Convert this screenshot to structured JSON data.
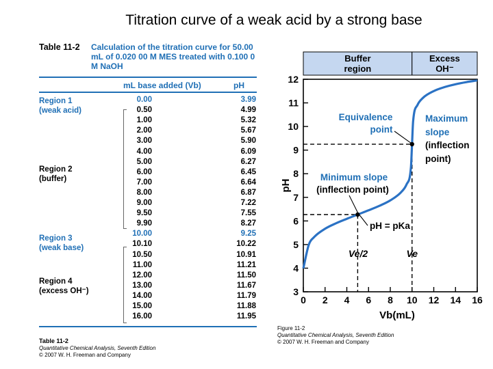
{
  "slide_title": "Titration curve of a weak acid by a strong base",
  "table": {
    "label": "Table 11-2",
    "caption": "Calculation of the titration curve for 50.00 mL of 0.020 00 M MES treated with 0.100 0 M NaOH",
    "col_volume": "mL base added (Vb)",
    "col_ph": "pH",
    "regions": [
      {
        "name": "Region 1",
        "desc": "(weak acid)"
      },
      {
        "name": "Region 2",
        "desc": "(buffer)"
      },
      {
        "name": "Region 3",
        "desc": "(weak base)"
      },
      {
        "name": "Region 4",
        "desc": "(excess OH⁻)"
      }
    ],
    "rows": [
      {
        "v": "0.00",
        "ph": "3.99"
      },
      {
        "v": "0.50",
        "ph": "4.99"
      },
      {
        "v": "1.00",
        "ph": "5.32"
      },
      {
        "v": "2.00",
        "ph": "5.67"
      },
      {
        "v": "3.00",
        "ph": "5.90"
      },
      {
        "v": "4.00",
        "ph": "6.09"
      },
      {
        "v": "5.00",
        "ph": "6.27"
      },
      {
        "v": "6.00",
        "ph": "6.45"
      },
      {
        "v": "7.00",
        "ph": "6.64"
      },
      {
        "v": "8.00",
        "ph": "6.87"
      },
      {
        "v": "9.00",
        "ph": "7.22"
      },
      {
        "v": "9.50",
        "ph": "7.55"
      },
      {
        "v": "9.90",
        "ph": "8.27"
      },
      {
        "v": "10.00",
        "ph": "9.25"
      },
      {
        "v": "10.10",
        "ph": "10.22"
      },
      {
        "v": "10.50",
        "ph": "10.91"
      },
      {
        "v": "11.00",
        "ph": "11.21"
      },
      {
        "v": "12.00",
        "ph": "11.50"
      },
      {
        "v": "13.00",
        "ph": "11.67"
      },
      {
        "v": "14.00",
        "ph": "11.79"
      },
      {
        "v": "15.00",
        "ph": "11.88"
      },
      {
        "v": "16.00",
        "ph": "11.95"
      }
    ],
    "footer_label": "Table 11-2",
    "footer_book": "Quantitative Chemical Analysis, Seventh Edition",
    "footer_copyright": "© 2007 W. H. Freeman and Company"
  },
  "figure": {
    "label": "Figure 11-2",
    "book": "Quantitative Chemical Analysis, Seventh Edition",
    "copyright": "© 2007 W. H. Freeman and Company"
  },
  "chart_data": {
    "type": "line",
    "title": "",
    "xlabel": "Vb(mL)",
    "ylabel": "pH",
    "xlim": [
      0,
      16
    ],
    "ylim": [
      3,
      12
    ],
    "xticks": [
      0,
      2,
      4,
      6,
      8,
      10,
      12,
      14,
      16
    ],
    "yticks": [
      3,
      4,
      5,
      6,
      7,
      8,
      9,
      10,
      11,
      12
    ],
    "series": [
      {
        "name": "Titration curve of MES",
        "x": [
          0,
          0.5,
          1,
          2,
          3,
          4,
          5,
          6,
          7,
          8,
          9,
          9.5,
          9.9,
          10,
          10.1,
          10.5,
          11,
          12,
          13,
          14,
          15,
          16
        ],
        "y": [
          3.99,
          4.99,
          5.32,
          5.67,
          5.9,
          6.09,
          6.27,
          6.45,
          6.64,
          6.87,
          7.22,
          7.55,
          8.27,
          9.25,
          10.22,
          10.91,
          11.21,
          11.5,
          11.67,
          11.79,
          11.88,
          11.95
        ]
      }
    ],
    "header_regions": [
      {
        "label_line1": "Buffer",
        "label_line2": "region",
        "from_x": 0,
        "to_x": 10
      },
      {
        "label_line1": "Excess",
        "label_line2": "OH⁻",
        "from_x": 10,
        "to_x": 16
      }
    ],
    "reference_lines": [
      {
        "x": 5,
        "y": 6.27
      },
      {
        "x": 10,
        "y": 9.25
      }
    ],
    "annotations": {
      "equivalence_1": "Equivalence",
      "equivalence_2": "point",
      "max_slope_1": "Maximum",
      "max_slope_2": "slope",
      "max_slope_3": "(inflection",
      "max_slope_4": "point)",
      "min_slope_1": "Minimum slope",
      "min_slope_2": "(inflection point)",
      "pka_label": "pH = pKa",
      "half_eq_label": "Ve/2",
      "eq_label": "Ve"
    }
  }
}
